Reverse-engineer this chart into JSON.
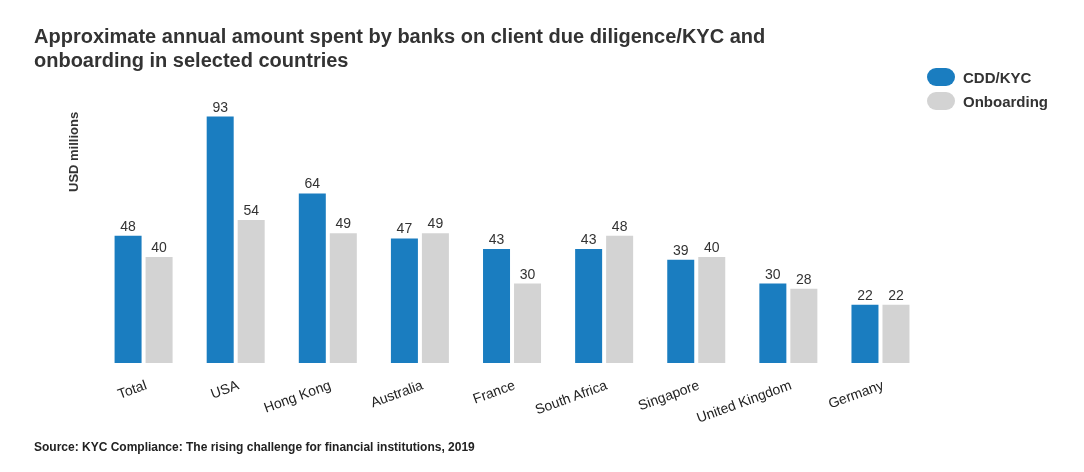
{
  "chart_data": {
    "type": "bar",
    "title": "Approximate annual amount spent by banks on client due diligence/KYC and onboarding in selected countries",
    "ylabel": "USD millions",
    "categories": [
      "Total",
      "USA",
      "Hong Kong",
      "Australia",
      "France",
      "South Africa",
      "Singapore",
      "United Kingdom",
      "Germany"
    ],
    "series": [
      {
        "name": "CDD/KYC",
        "color": "#1a7dc0",
        "values": [
          48,
          93,
          64,
          47,
          43,
          43,
          39,
          30,
          22
        ]
      },
      {
        "name": "Onboarding",
        "color": "#d3d3d3",
        "values": [
          40,
          54,
          49,
          49,
          30,
          48,
          40,
          28,
          22
        ]
      }
    ],
    "data_labels": true,
    "legend": "top right",
    "grid": false,
    "annotations": [
      "Source: KYC Compliance: The rising challenge for financial institutions, 2019"
    ]
  }
}
